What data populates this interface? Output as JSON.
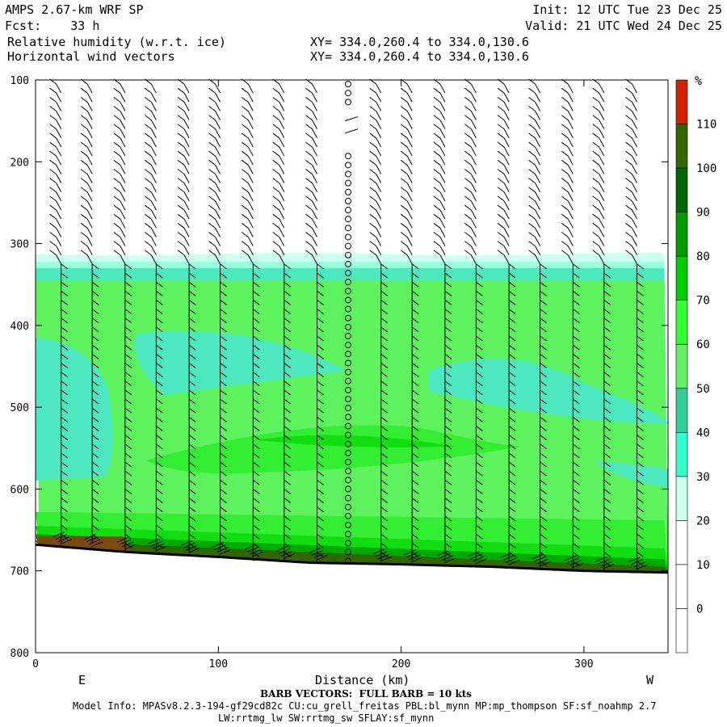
{
  "header": {
    "model": "AMPS 2.67-km WRF SP",
    "fcst": "Fcst:    33 h",
    "init": "Init: 12 UTC Tue 23 Dec 25",
    "valid": "Valid: 21 UTC Wed 24 Dec 25",
    "field1": "Relative humidity (w.r.t. ice)",
    "field2": "Horizontal wind vectors",
    "xy1": "XY= 334.0,260.4 to 334.0,130.6",
    "xy2": "XY= 334.0,260.4 to 334.0,130.6"
  },
  "axes": {
    "xlabel": "Distance (km)",
    "left_end": "E",
    "right_end": "W",
    "xticks": [
      "0",
      "100",
      "200",
      "300"
    ],
    "yticks": [
      "100",
      "200",
      "300",
      "400",
      "500",
      "600",
      "700",
      "800"
    ]
  },
  "colorbar": {
    "unit": "%",
    "labels": [
      "110",
      "100",
      "90",
      "80",
      "70",
      "60",
      "50",
      "40",
      "30",
      "20",
      "10",
      "0"
    ],
    "colors": [
      "#cc2200",
      "#336600",
      "#006600",
      "#009900",
      "#00cc00",
      "#33ff33",
      "#66ee66",
      "#33cc99",
      "#33ffcc",
      "#ccffee",
      "#ffffff",
      "#ffffff",
      "#ffffff",
      "#ffffff"
    ]
  },
  "footer": {
    "barb_note": "BARB VECTORS:  FULL BARB = 10 kts",
    "model_info": "Model Info: MPASv8.2.3-194-gf29cd82c CU:cu_grell_freitas PBL:bl_mynn MP:mp_thompson SF:sf_noahmp 2.7",
    "model_info2": "LW:rrtmg_lw SW:rrtmg_sw SFLAY:sf_mynn"
  },
  "chart_data": {
    "type": "heatmap",
    "title": "Relative humidity (w.r.t. ice)",
    "xlabel": "Distance (km)",
    "ylabel": "",
    "xlim": [
      0,
      346
    ],
    "ylim": [
      800,
      100
    ],
    "y_scale": "pressure (hPa), inverted",
    "contour_levels": [
      0,
      10,
      20,
      30,
      40,
      50,
      60,
      70,
      80,
      90,
      100,
      110
    ],
    "cloud_top_hPa": 318,
    "approximate_rh_by_layer": [
      {
        "pressure_range": [
          100,
          315
        ],
        "rh": "<30"
      },
      {
        "pressure_range": [
          315,
          345
        ],
        "rh": "30-50"
      },
      {
        "pressure_range": [
          345,
          660
        ],
        "rh": "60-80"
      },
      {
        "pressure_range": [
          520,
          550
        ],
        "rh": "70-80"
      },
      {
        "pressure_range": [
          640,
          690
        ],
        "rh": "80-110"
      }
    ],
    "terrain_hPa": [
      {
        "x": 0,
        "p": 668
      },
      {
        "x": 50,
        "p": 677
      },
      {
        "x": 100,
        "p": 683
      },
      {
        "x": 150,
        "p": 690
      },
      {
        "x": 200,
        "p": 692
      },
      {
        "x": 250,
        "p": 695
      },
      {
        "x": 300,
        "p": 700
      },
      {
        "x": 346,
        "p": 702
      }
    ],
    "barb_columns_km": [
      14,
      31,
      49,
      66,
      84,
      101,
      119,
      136,
      154,
      171,
      189,
      206,
      224,
      241,
      259,
      276,
      294,
      311,
      329
    ],
    "barb_unit": "kts, full barb = 10"
  }
}
